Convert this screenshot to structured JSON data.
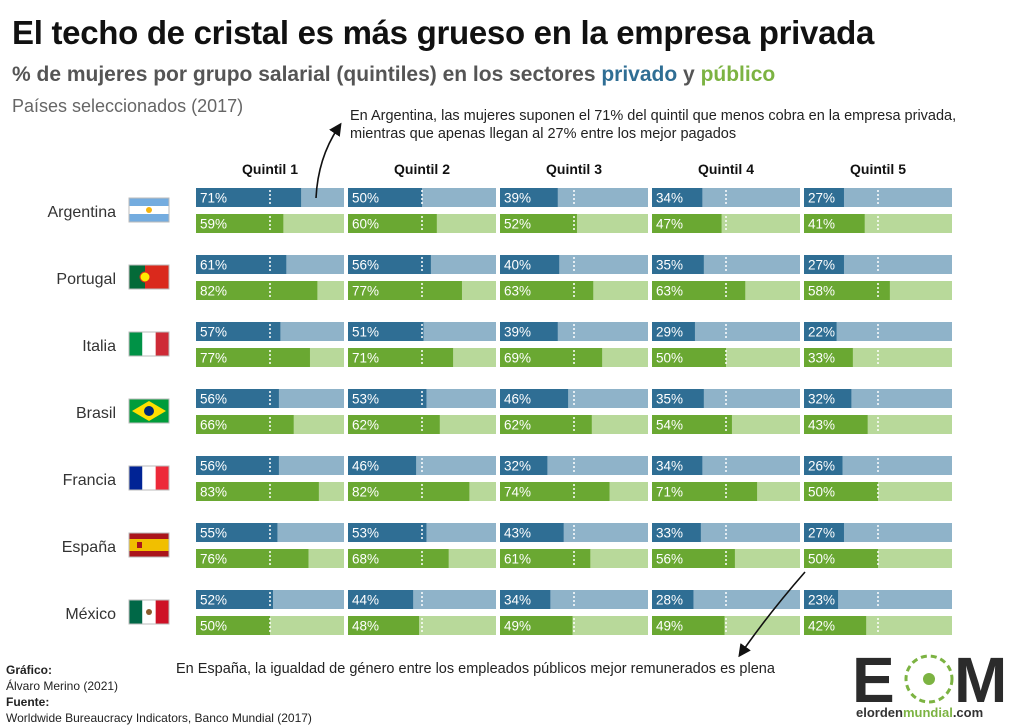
{
  "header": {
    "title": "El techo de cristal es más grueso en la empresa privada",
    "subtitle_main": "% de mujeres por grupo salarial (quintiles) en los sectores",
    "subtitle_private": "privado",
    "subtitle_and": "y",
    "subtitle_public": "público",
    "note": "Países seleccionados (2017)"
  },
  "annotations": {
    "top": "En Argentina, las mujeres suponen el 71% del quintil que menos cobra en la empresa privada, mientras que apenas llegan al 27% entre los mejor pagados",
    "bottom": "En España, la igualdad de género entre los empleados públicos mejor remunerados es plena"
  },
  "credits": {
    "chart_label": "Gráfico:",
    "chart_author": "Álvaro Merino (2021)",
    "source_label": "Fuente:",
    "source": "Worldwide Bureaucracy Indicators, Banco Mundial (2017)"
  },
  "logo": {
    "letters": "EOM",
    "site_prefix": "elorden",
    "site_highlight": "mundial",
    "site_suffix": ".com"
  },
  "colors": {
    "private_fill": "#2f6e94",
    "private_bg": "#8fb3c9",
    "public_fill": "#6aa832",
    "public_bg": "#b8d99a",
    "brand_green": "#7cb342"
  },
  "chart_data": {
    "type": "bar",
    "title": "El techo de cristal es más grueso en la empresa privada",
    "subtitle": "% de mujeres por grupo salarial (quintiles) en los sectores privado y público",
    "categories": [
      "Quintil 1",
      "Quintil 2",
      "Quintil 3",
      "Quintil 4",
      "Quintil 5"
    ],
    "ylim": [
      0,
      100
    ],
    "reference_line": 50,
    "countries": [
      {
        "name": "Argentina",
        "flag": "argentina-flag",
        "privado": [
          71,
          50,
          39,
          34,
          27
        ],
        "publico": [
          59,
          60,
          52,
          47,
          41
        ]
      },
      {
        "name": "Portugal",
        "flag": "portugal-flag",
        "privado": [
          61,
          56,
          40,
          35,
          27
        ],
        "publico": [
          82,
          77,
          63,
          63,
          58
        ]
      },
      {
        "name": "Italia",
        "flag": "italy-flag",
        "privado": [
          57,
          51,
          39,
          29,
          22
        ],
        "publico": [
          77,
          71,
          69,
          50,
          33
        ]
      },
      {
        "name": "Brasil",
        "flag": "brazil-flag",
        "privado": [
          56,
          53,
          46,
          35,
          32
        ],
        "publico": [
          66,
          62,
          62,
          54,
          43
        ]
      },
      {
        "name": "Francia",
        "flag": "france-flag",
        "privado": [
          56,
          46,
          32,
          34,
          26
        ],
        "publico": [
          83,
          82,
          74,
          71,
          50
        ]
      },
      {
        "name": "España",
        "flag": "spain-flag",
        "privado": [
          55,
          53,
          43,
          33,
          27
        ],
        "publico": [
          76,
          68,
          61,
          56,
          50
        ]
      },
      {
        "name": "México",
        "flag": "mexico-flag",
        "privado": [
          52,
          44,
          34,
          28,
          23
        ],
        "publico": [
          50,
          48,
          49,
          49,
          42
        ]
      }
    ]
  }
}
